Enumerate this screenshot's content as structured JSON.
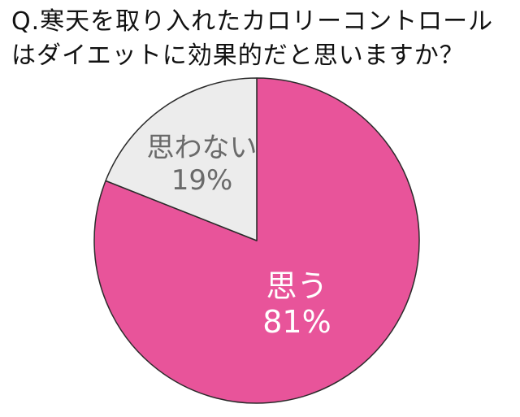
{
  "title": {
    "line1": "Q.寒天を取り入れたカロリーコントロール",
    "line2": "はダイエットに効果的だと思いますか？"
  },
  "chart_data": {
    "type": "pie",
    "categories": [
      "思う",
      "思わない"
    ],
    "values": [
      81,
      19
    ],
    "value_labels": [
      "81%",
      "19%"
    ],
    "colors": [
      "#E8549A",
      "#ECECEC"
    ],
    "label_colors": [
      "#ffffff",
      "#6a6a6a"
    ],
    "start": "12 o'clock",
    "direction": "clockwise",
    "legend": "none"
  }
}
